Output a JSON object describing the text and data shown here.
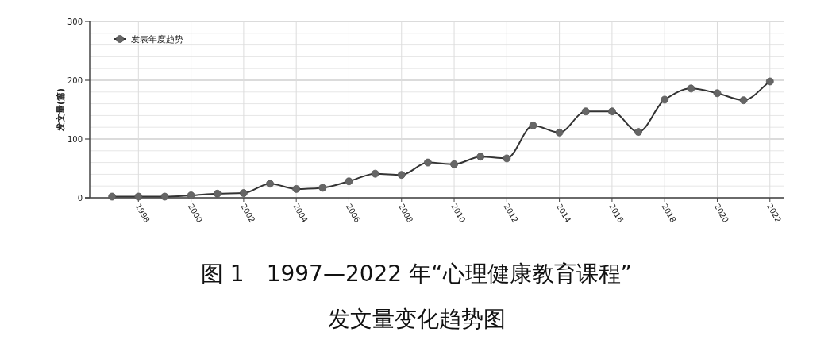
{
  "chart_data": {
    "type": "line",
    "title": "图 1　1997—2022 年“心理健康教育课程”",
    "subtitle": "发文量变化趋势图",
    "ylabel": "发文量(篇)",
    "x": [
      1997,
      1998,
      1999,
      2000,
      2001,
      2002,
      2003,
      2004,
      2005,
      2006,
      2007,
      2008,
      2009,
      2010,
      2011,
      2012,
      2013,
      2014,
      2015,
      2016,
      2017,
      2018,
      2019,
      2020,
      2021,
      2022
    ],
    "series": [
      {
        "name": "发表年度趋势",
        "color": "#666666",
        "values": [
          2,
          2,
          2,
          4,
          7,
          8,
          24,
          15,
          17,
          28,
          41,
          39,
          60,
          57,
          70,
          67,
          123,
          111,
          147,
          147,
          112,
          167,
          186,
          178,
          166,
          198
        ]
      }
    ],
    "xlim": [
      1996.15,
      2022.55
    ],
    "xticks": [
      1998,
      2000,
      2002,
      2004,
      2006,
      2008,
      2010,
      2012,
      2014,
      2016,
      2018,
      2020,
      2022
    ],
    "ylim": [
      0,
      300
    ],
    "yticks": [
      0,
      {
        "value": 20,
        "label": null
      },
      {
        "value": 40,
        "label": null
      },
      {
        "value": 60,
        "label": null
      },
      {
        "value": 80,
        "label": null
      },
      100,
      {
        "value": 120,
        "label": null
      },
      {
        "value": 140,
        "label": null
      },
      {
        "value": 160,
        "label": null
      },
      {
        "value": 180,
        "label": null
      },
      200,
      {
        "value": 220,
        "label": null
      },
      {
        "value": 240,
        "label": null
      },
      {
        "value": 260,
        "label": null
      },
      {
        "value": 280,
        "label": null
      },
      300
    ],
    "grid": true,
    "legend": "top left",
    "marker": "circle",
    "line_style": "solid"
  }
}
